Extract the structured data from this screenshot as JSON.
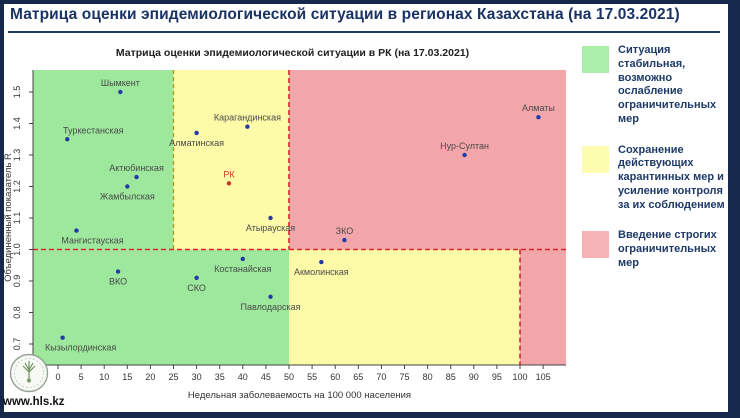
{
  "header": {
    "title": "Матрица оценки эпидемиологической ситуации в регионах Казахстана (на 17.03.2021)"
  },
  "chart_data": {
    "type": "scatter",
    "title": "Матрица оценки эпидемиологической ситуации в РК (на 17.03.2021)",
    "xlabel": "Недельная заболеваемость на 100 000 населения",
    "ylabel": "Объединенный показатель R",
    "xlim": [
      -6,
      110
    ],
    "ylim": [
      0.63,
      1.57
    ],
    "x_ticks": [
      0,
      5,
      10,
      15,
      20,
      25,
      30,
      35,
      40,
      45,
      50,
      55,
      60,
      65,
      70,
      75,
      80,
      85,
      90,
      95,
      100,
      105
    ],
    "y_ticks": [
      0.7,
      0.8,
      0.9,
      1.0,
      1.1,
      1.2,
      1.3,
      1.4,
      1.5
    ],
    "grid": false,
    "legend_position": "right",
    "zones": {
      "x_green_yellow": 25,
      "x_yellow_red_high": 50,
      "x_yellow_red_low": 100,
      "y_threshold": 1.0,
      "colors": {
        "green": "#9de89d",
        "yellow": "#fdfba8",
        "red": "#f3a6a9"
      },
      "line_colors": {
        "olive": "#b09c1e",
        "red": "#d8262a"
      }
    },
    "point_color": "#2438a6",
    "highlight_color": "#c03a2a",
    "label_color": "#4a4a4a",
    "points": [
      {
        "name": "Шымкент",
        "x": 13.5,
        "y": 1.5,
        "label_pos": "above"
      },
      {
        "name": "Туркестанская",
        "x": 2,
        "y": 1.35,
        "label_pos": "above",
        "label_dx": 26
      },
      {
        "name": "Актюбинская",
        "x": 17,
        "y": 1.23,
        "label_pos": "above"
      },
      {
        "name": "Жамбылская",
        "x": 15,
        "y": 1.2,
        "label_pos": "below"
      },
      {
        "name": "Мангистауская",
        "x": 4,
        "y": 1.06,
        "label_pos": "below",
        "label_dx": 16
      },
      {
        "name": "ВКО",
        "x": 13,
        "y": 0.93,
        "label_pos": "below"
      },
      {
        "name": "СКО",
        "x": 30,
        "y": 0.91,
        "label_pos": "below"
      },
      {
        "name": "Кызылординская",
        "x": 1,
        "y": 0.72,
        "label_pos": "below",
        "label_dx": 18
      },
      {
        "name": "Алматинская",
        "x": 30,
        "y": 1.37,
        "label_pos": "below"
      },
      {
        "name": "Карагандинская",
        "x": 41,
        "y": 1.39,
        "label_pos": "above"
      },
      {
        "name": "РК",
        "x": 37,
        "y": 1.21,
        "label_pos": "above",
        "highlight": true
      },
      {
        "name": "Атырауская",
        "x": 46,
        "y": 1.1,
        "label_pos": "below"
      },
      {
        "name": "ЗКО",
        "x": 62,
        "y": 1.03,
        "label_pos": "above"
      },
      {
        "name": "Костанайская",
        "x": 40,
        "y": 0.97,
        "label_pos": "below"
      },
      {
        "name": "Акмолинская",
        "x": 57,
        "y": 0.96,
        "label_pos": "below"
      },
      {
        "name": "Павлодарская",
        "x": 46,
        "y": 0.85,
        "label_pos": "below"
      },
      {
        "name": "Нур-Султан",
        "x": 88,
        "y": 1.3,
        "label_pos": "above"
      },
      {
        "name": "Алматы",
        "x": 104,
        "y": 1.42,
        "label_pos": "above"
      }
    ]
  },
  "legend": {
    "items": [
      {
        "color": "#a9efa9",
        "text": "Ситуация стабильная, возможно ослабление ограничительных мер"
      },
      {
        "color": "#fdfdb0",
        "text": "Сохранение действующих карантинных мер и усиление контроля за их соблюдением"
      },
      {
        "color": "#f6b3b8",
        "text": "Введение строгих ограничительных мер"
      }
    ]
  },
  "footer": {
    "site": "www.hls.kz"
  },
  "colors": {
    "accent_navy": "#1e3a68",
    "frame_navy": "#16294d"
  }
}
